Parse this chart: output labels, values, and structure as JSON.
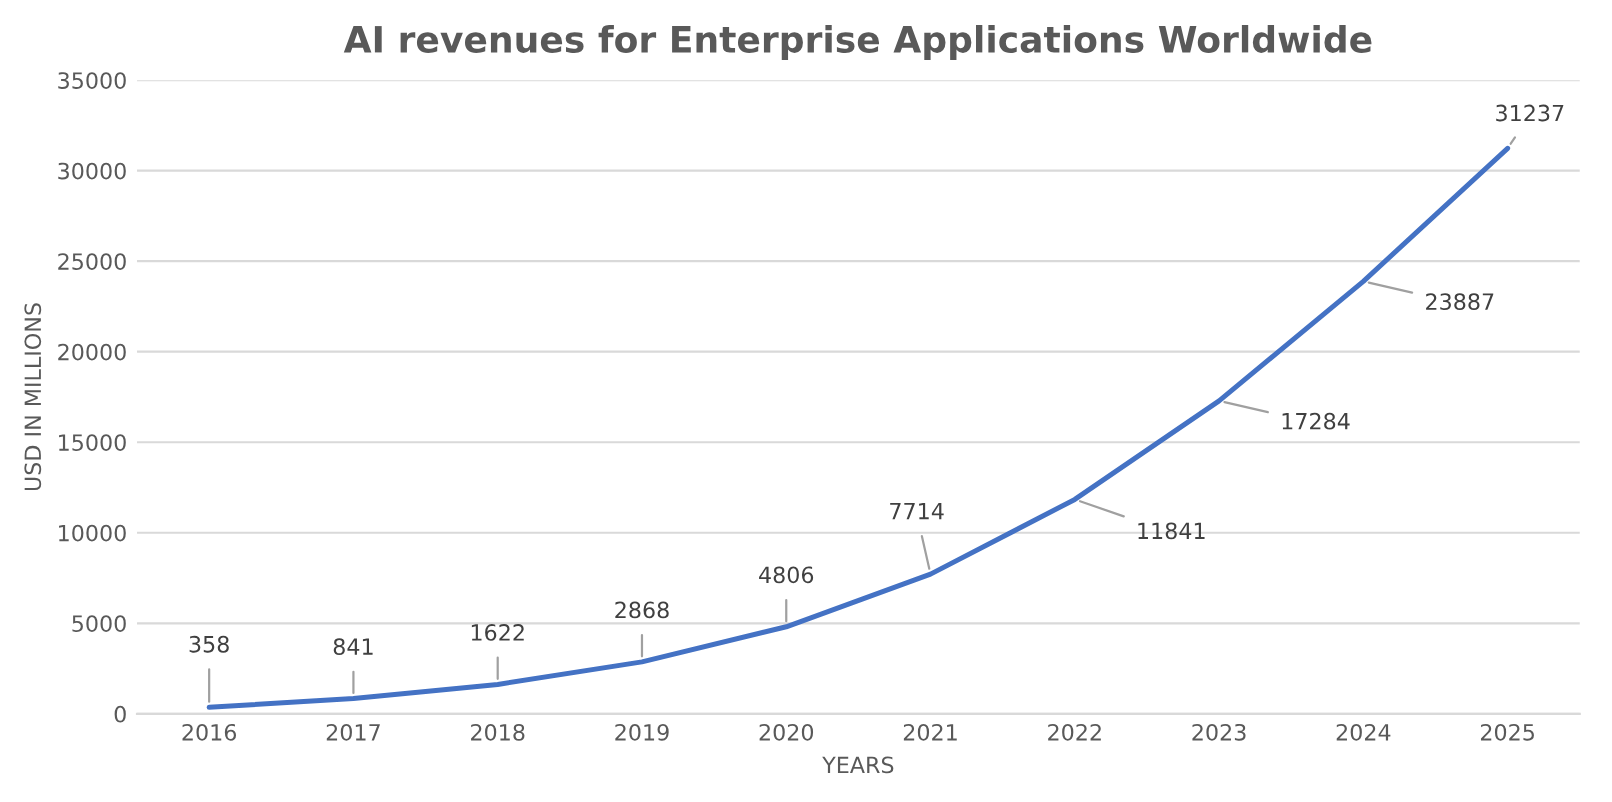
{
  "chart_data": {
    "type": "line",
    "title": "AI revenues for Enterprise Applications Worldwide",
    "xlabel": "YEARS",
    "ylabel": "USD IN MILLIONS",
    "categories": [
      "2016",
      "2017",
      "2018",
      "2019",
      "2020",
      "2021",
      "2022",
      "2023",
      "2024",
      "2025"
    ],
    "series": [
      {
        "color": "#4472c4",
        "values": [
          358,
          841,
          1622,
          2868,
          4806,
          7714,
          11841,
          17284,
          23887,
          31237
        ]
      }
    ],
    "ylim": [
      0,
      35000
    ],
    "yticks": [
      0,
      5000,
      10000,
      15000,
      20000,
      25000,
      30000,
      35000
    ],
    "grid": "y",
    "data_labels": true,
    "marker": "none",
    "line_style": "solid",
    "legend": false
  }
}
